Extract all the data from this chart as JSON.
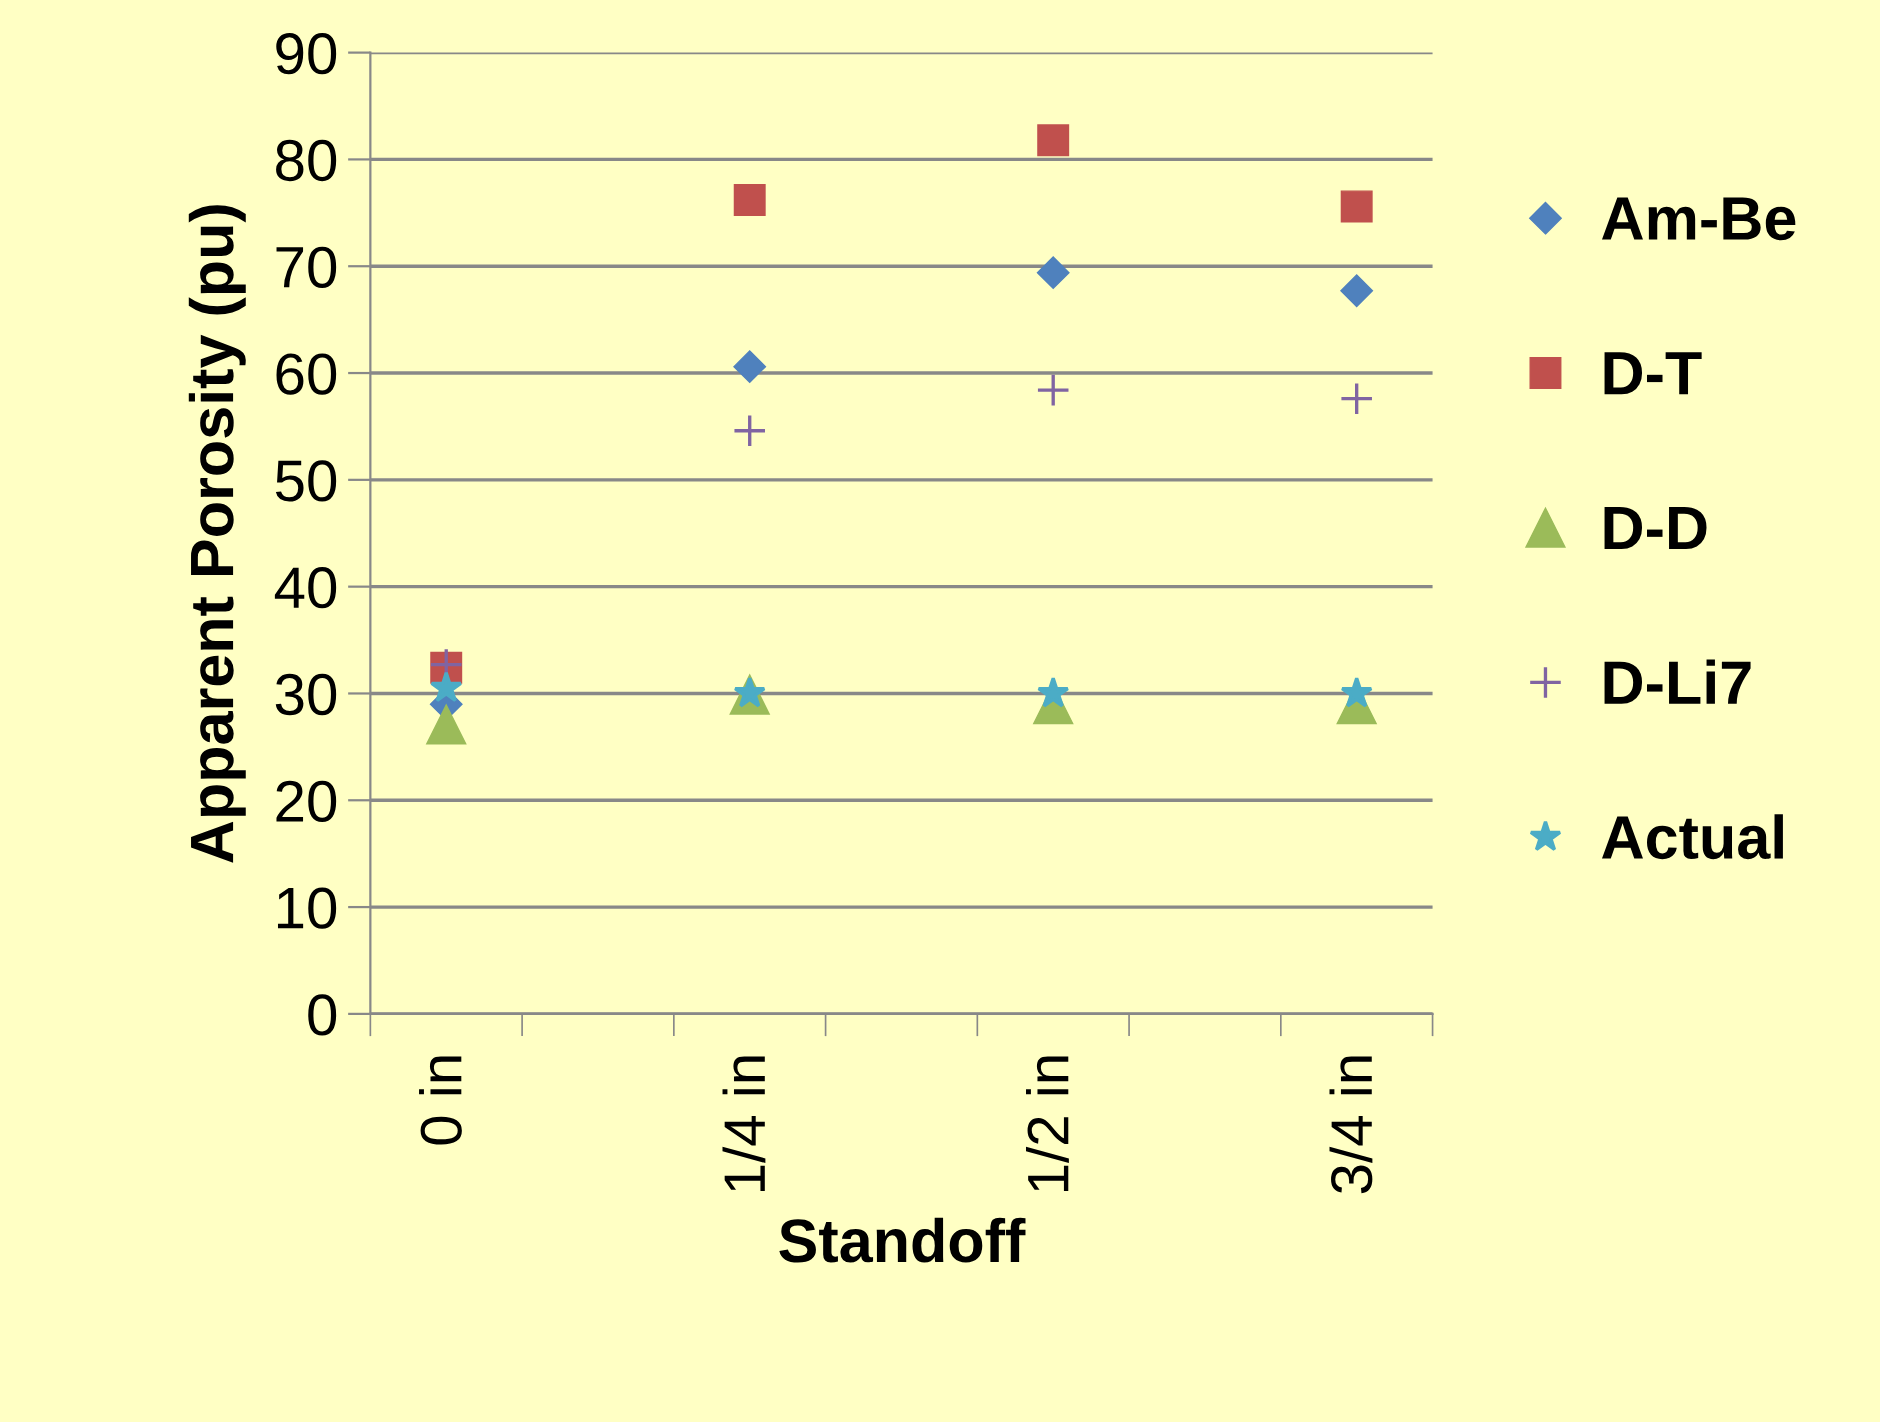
{
  "chart_data": {
    "type": "scatter",
    "xlabel": "Standoff",
    "ylabel": "Apparent Porosity (pu)",
    "categories": [
      "0 in",
      null,
      "1/4 in",
      null,
      "1/2 in",
      null,
      "3/4 in"
    ],
    "series": [
      {
        "name": "Am-Be",
        "color": "#4f81bd",
        "marker": "diamond",
        "values": [
          29,
          null,
          60.6,
          null,
          69.4,
          null,
          67.7
        ]
      },
      {
        "name": "D-T",
        "color": "#c0504d",
        "marker": "square",
        "values": [
          32.4,
          null,
          76.2,
          null,
          81.8,
          null,
          75.6
        ]
      },
      {
        "name": "D-D",
        "color": "#9bbb59",
        "marker": "triangle",
        "values": [
          27.1,
          null,
          29.9,
          null,
          29,
          null,
          29
        ]
      },
      {
        "name": "D-Li7",
        "color": "#8064a2",
        "marker": "cross",
        "values": [
          32.7,
          null,
          54.6,
          null,
          58.4,
          null,
          57.6
        ]
      },
      {
        "name": "Actual",
        "color": "#4bacc6",
        "marker": "star",
        "values": [
          30.5,
          null,
          30,
          null,
          30,
          null,
          30
        ]
      }
    ],
    "ylim": [
      0,
      90
    ],
    "yticks": [
      0,
      10,
      20,
      30,
      40,
      50,
      60,
      70,
      80,
      90
    ],
    "grid": "y",
    "legend": "right"
  }
}
